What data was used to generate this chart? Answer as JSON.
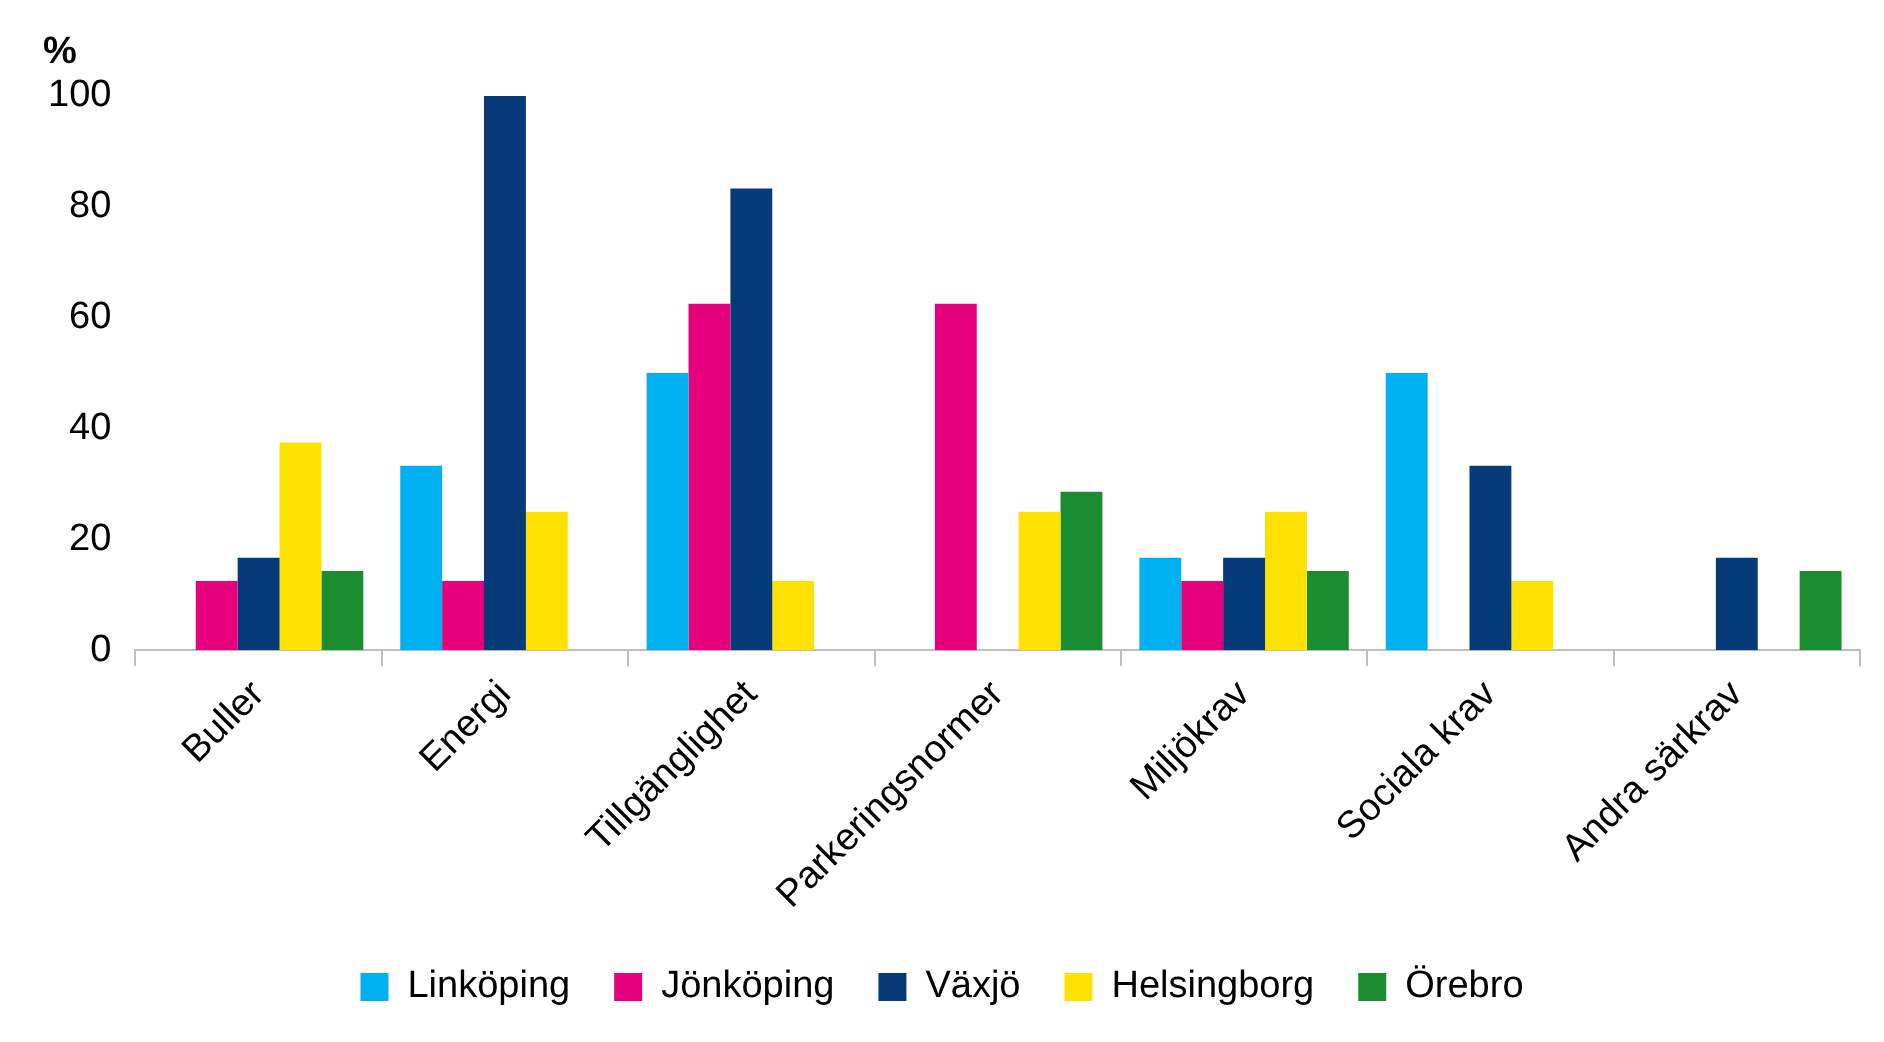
{
  "chart_data": {
    "type": "bar",
    "ylabel": "%",
    "categories": [
      "Buller",
      "Energi",
      "Tillgänglighet",
      "Parkeringsnormer",
      "Miljökrav",
      "Sociala krav",
      "Andra särkrav"
    ],
    "series": [
      {
        "name": "Linköping",
        "color": "#00b0f0",
        "values": [
          0,
          33.3,
          50,
          0,
          16.7,
          50,
          0
        ]
      },
      {
        "name": "Jönköping",
        "color": "#e6007e",
        "values": [
          12.5,
          12.5,
          62.5,
          62.5,
          12.5,
          0,
          0
        ]
      },
      {
        "name": "Växjö",
        "color": "#063a78",
        "values": [
          16.7,
          100,
          83.3,
          0,
          16.7,
          33.3,
          16.7
        ]
      },
      {
        "name": "Helsingborg",
        "color": "#ffe100",
        "values": [
          37.5,
          25,
          12.5,
          25,
          25,
          12.5,
          0
        ]
      },
      {
        "name": "Örebro",
        "color": "#1b8c2f",
        "values": [
          14.3,
          0,
          0,
          28.6,
          14.3,
          0,
          14.3
        ]
      }
    ],
    "ylim": [
      0,
      100
    ],
    "yticks": [
      0,
      20,
      40,
      60,
      80,
      100
    ],
    "grid": false,
    "legend": "bottom"
  }
}
